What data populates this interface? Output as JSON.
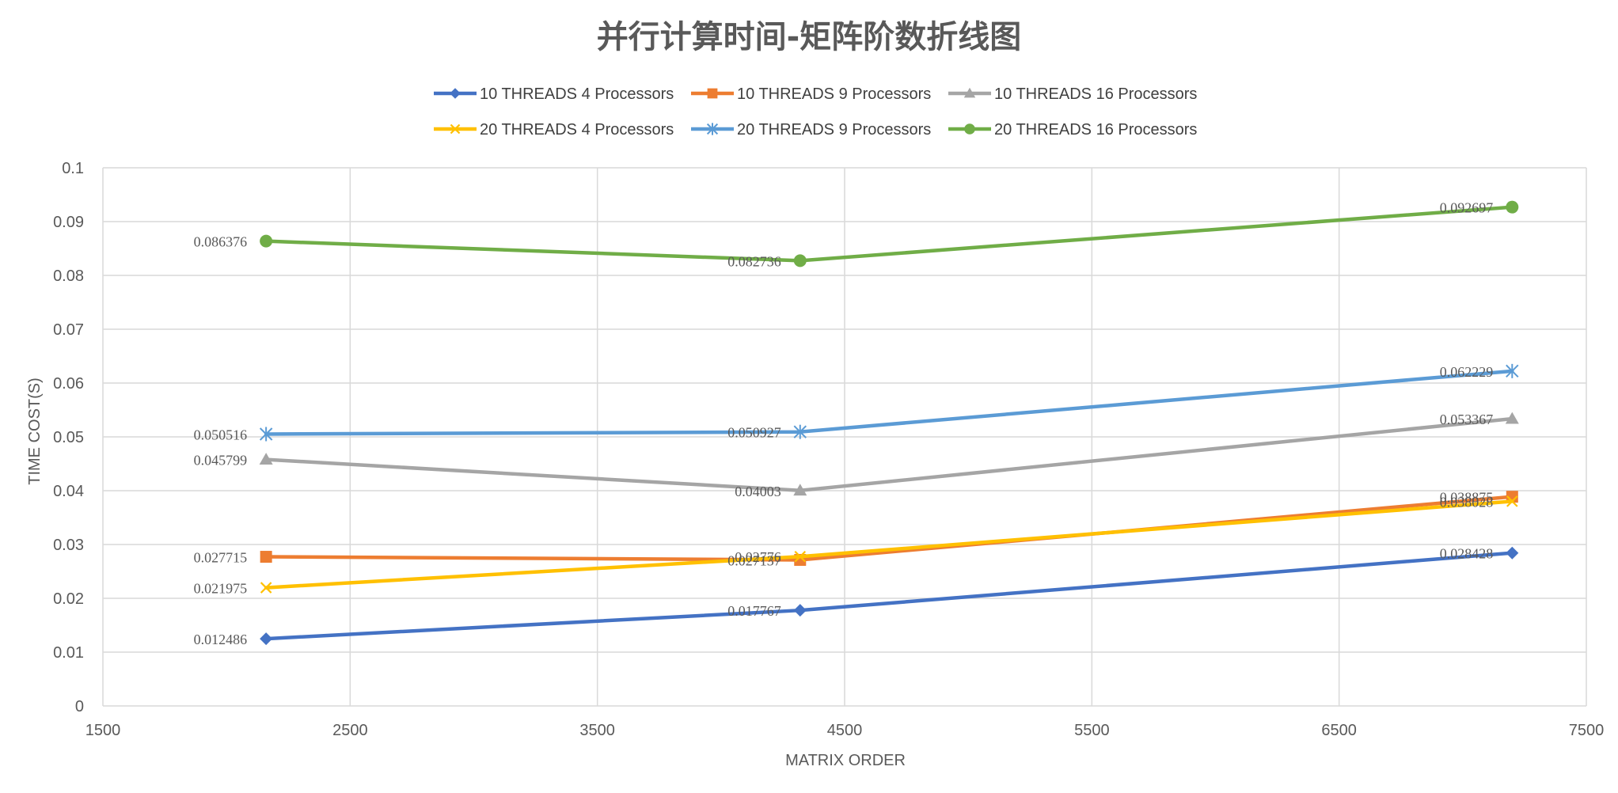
{
  "chart_data": {
    "type": "line",
    "title": "并行计算时间-矩阵阶数折线图",
    "xlabel": "MATRIX ORDER",
    "ylabel": "TIME COST(S)",
    "xlim": [
      1500,
      7500
    ],
    "ylim": [
      0,
      0.1
    ],
    "x_ticks": [
      "1500",
      "2500",
      "3500",
      "4500",
      "5500",
      "6500",
      "7500"
    ],
    "y_ticks": [
      "0",
      "0.01",
      "0.02",
      "0.03",
      "0.04",
      "0.05",
      "0.06",
      "0.07",
      "0.08",
      "0.09",
      "0.1"
    ],
    "grid": "on",
    "legend_position": "top",
    "x": [
      2160,
      4320,
      7200
    ],
    "series": [
      {
        "name": "10 THREADS 4 Processors",
        "color": "#4472C4",
        "marker": "diamond",
        "values": [
          0.012486,
          0.017767,
          0.028428
        ],
        "labels": [
          "0.012486",
          "0.017767",
          "0.028428"
        ]
      },
      {
        "name": "10 THREADS 9 Processors",
        "color": "#ED7D31",
        "marker": "square",
        "values": [
          0.027715,
          0.027137,
          0.038875
        ],
        "labels": [
          "0.027715",
          "0.027137",
          "0.038875"
        ]
      },
      {
        "name": "10 THREADS 16 Processors",
        "color": "#A5A5A5",
        "marker": "triangle",
        "values": [
          0.045799,
          0.04003,
          0.053367
        ],
        "labels": [
          "0.045799",
          "0.04003",
          "0.053367"
        ]
      },
      {
        "name": "20 THREADS 4 Processors",
        "color": "#FFC000",
        "marker": "x",
        "values": [
          0.021975,
          0.02776,
          0.038028
        ],
        "labels": [
          "0.021975",
          "0.02776",
          "0.038028"
        ]
      },
      {
        "name": "20 THREADS 9 Processors",
        "color": "#5B9BD5",
        "marker": "star",
        "values": [
          0.050516,
          0.050927,
          0.062229
        ],
        "labels": [
          "0.050516",
          "0.050927",
          "0.062229"
        ]
      },
      {
        "name": "20 THREADS 16 Processors",
        "color": "#70AD47",
        "marker": "circle",
        "values": [
          0.086376,
          0.082736,
          0.092697
        ],
        "labels": [
          "0.086376",
          "0.082736",
          "0.092697"
        ]
      }
    ]
  }
}
